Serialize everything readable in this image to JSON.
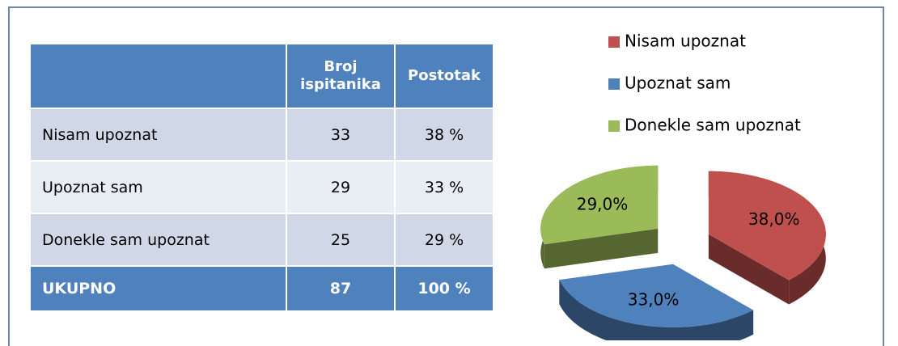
{
  "table": {
    "header": [
      "Broj ispitanika",
      "Postotak"
    ],
    "rows": [
      [
        "Nisam upoznat",
        "33",
        "38 %"
      ],
      [
        "Upoznat sam",
        "29",
        "33 %"
      ],
      [
        "Donekle sam upoznat",
        "25",
        "29 %"
      ]
    ],
    "total": [
      "UKUPNO",
      "87",
      "100 %"
    ]
  },
  "chart_data": {
    "type": "pie",
    "categories": [
      "Nisam upoznat",
      "Upoznat sam",
      "Donekle sam upoznat"
    ],
    "values": [
      38,
      33,
      29
    ],
    "value_labels": [
      "38,0%",
      "33,0%",
      "29,0%"
    ],
    "colors": [
      "#c0504d",
      "#4f81bd",
      "#9bbb59"
    ],
    "legend": "top"
  }
}
